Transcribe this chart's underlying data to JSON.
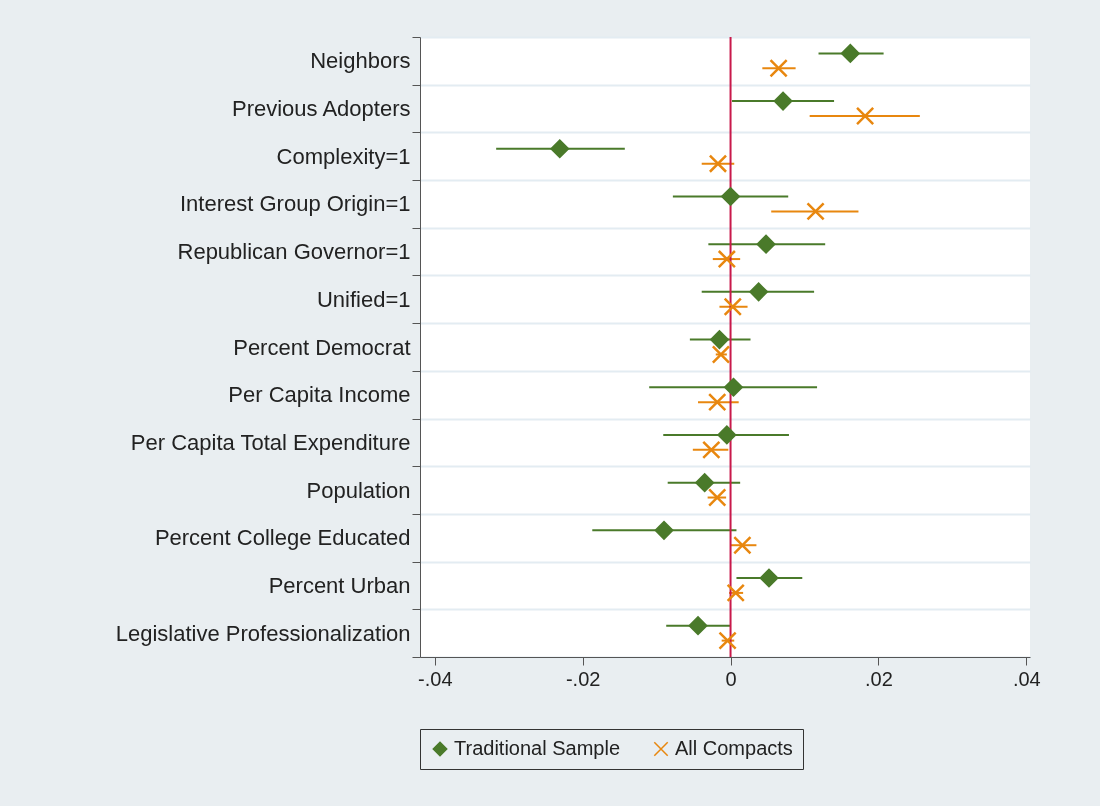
{
  "chart_data": {
    "type": "scatter",
    "orientation": "horizontal",
    "categories": [
      "Neighbors",
      "Previous Adopters",
      "Complexity=1",
      "Interest Group Origin=1",
      "Republican Governor=1",
      "Unified=1",
      "Percent Democrat",
      "Per Capita Income",
      "Per Capita Total Expenditure",
      "Population",
      "Percent College Educated",
      "Percent Urban",
      "Legislative Professionalization"
    ],
    "series": [
      {
        "name": "Traditional Sample",
        "color": "#4a7a2a",
        "marker": "diamond",
        "values": [
          0.0162,
          0.0071,
          -0.0231,
          0,
          0.0048,
          0.0038,
          -0.0015,
          0.0004,
          -0.0005,
          -0.0035,
          -0.009,
          0.0052,
          -0.0044
        ],
        "errors": [
          [
            0.0119,
            0.0207
          ],
          [
            0.0002,
            0.014
          ],
          [
            -0.0317,
            -0.0143
          ],
          [
            -0.0078,
            0.0078
          ],
          [
            -0.003,
            0.0128
          ],
          [
            -0.0039,
            0.0113
          ],
          [
            -0.0055,
            0.0027
          ],
          [
            -0.011,
            0.0117
          ],
          [
            -0.0091,
            0.0079
          ],
          [
            -0.0085,
            0.0013
          ],
          [
            -0.0187,
            0.0008
          ],
          [
            0.0008,
            0.0097
          ],
          [
            -0.0087,
            0
          ]
        ]
      },
      {
        "name": "All Compacts",
        "color": "#e8870f",
        "marker": "cross",
        "values": [
          0.0065,
          0.0182,
          -0.0017,
          0.0115,
          -0.0005,
          0.0003,
          -0.0013,
          -0.0018,
          -0.0026,
          -0.0018,
          0.0016,
          0.0007,
          -0.0004
        ],
        "errors": [
          [
            0.0043,
            0.0088
          ],
          [
            0.0107,
            0.0256
          ],
          [
            -0.0039,
            0.0005
          ],
          [
            0.0055,
            0.0173
          ],
          [
            -0.0024,
            0.0013
          ],
          [
            -0.0015,
            0.0023
          ],
          [
            -0.002,
            -0.0005
          ],
          [
            -0.0044,
            0.0011
          ],
          [
            -0.0051,
            -0.0003
          ],
          [
            -0.0031,
            -0.0006
          ],
          [
            0,
            0.0035
          ],
          [
            -0.0002,
            0.0017
          ],
          [
            -0.0012,
            0.0005
          ]
        ]
      }
    ],
    "xlim": [
      -0.042,
      0.0405
    ],
    "xticks": [
      {
        "value": -0.04,
        "label": "-.04"
      },
      {
        "value": -0.02,
        "label": "-.02"
      },
      0,
      {
        "value": 0.02,
        "label": ".02"
      },
      {
        "value": 0.04,
        "label": ".04"
      }
    ],
    "ref_lines": [
      {
        "axis": "x",
        "value": 0,
        "color": "#c8194b"
      }
    ],
    "grid": "y",
    "legend": "bottom"
  }
}
